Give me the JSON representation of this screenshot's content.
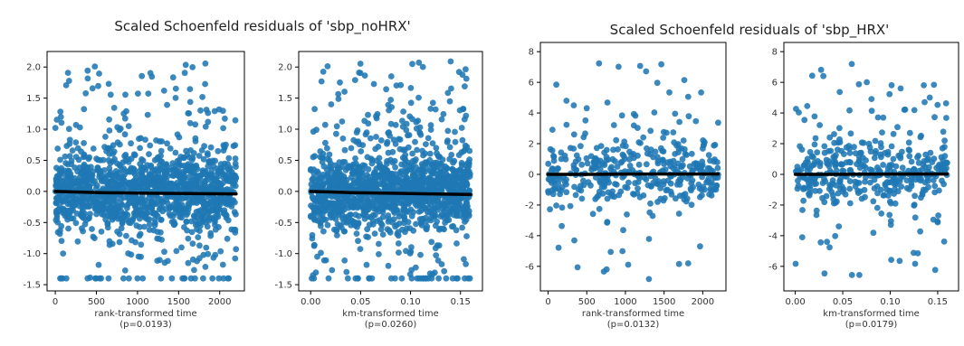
{
  "figure": {
    "title_left": "Scaled Schoenfeld residuals of 'sbp_noHRX'",
    "title_right": "Scaled Schoenfeld residuals of 'sbp_HRX'"
  },
  "colors": {
    "points": "#1f77b4",
    "trend": "#000000",
    "axes": "#000000"
  },
  "chart_data": [
    {
      "type": "scatter",
      "variable": "sbp_noHRX",
      "xlabel": "rank-transformed time",
      "pvalue": "(p=0.0193)",
      "xlim": [
        -100,
        2300
      ],
      "ylim": [
        -1.6,
        2.25
      ],
      "xticks": [
        0,
        500,
        1000,
        1500,
        2000
      ],
      "xtick_labels": [
        "0",
        "500",
        "1000",
        "1500",
        "2000"
      ],
      "yticks": [
        -1.5,
        -1.0,
        -0.5,
        0.0,
        0.5,
        1.0,
        1.5,
        2.0
      ],
      "ytick_labels": [
        "-1.5",
        "-1.0",
        "-0.5",
        "0.0",
        "0.5",
        "1.0",
        "1.5",
        "2.0"
      ],
      "points": {
        "n": 1400,
        "x_range": [
          0,
          2200
        ],
        "dense_spread": 0.55,
        "y_min": -1.4,
        "y_max": 2.2
      },
      "trend": {
        "x": [
          0,
          550,
          1100,
          1650,
          2200
        ],
        "y": [
          0.0,
          -0.02,
          -0.03,
          -0.035,
          -0.04
        ]
      }
    },
    {
      "type": "scatter",
      "variable": "sbp_noHRX",
      "xlabel": "km-transformed time",
      "pvalue": "(p=0.0260)",
      "xlim": [
        -0.012,
        0.172
      ],
      "ylim": [
        -1.6,
        2.25
      ],
      "xticks": [
        0.0,
        0.05,
        0.1,
        0.15
      ],
      "xtick_labels": [
        "0.00",
        "0.05",
        "0.10",
        "0.15"
      ],
      "yticks": [
        -1.5,
        -1.0,
        -0.5,
        0.0,
        0.5,
        1.0,
        1.5,
        2.0
      ],
      "ytick_labels": [
        "-1.5",
        "-1.0",
        "-0.5",
        "0.0",
        "0.5",
        "1.0",
        "1.5",
        "2.0"
      ],
      "points": {
        "n": 1400,
        "x_range": [
          0,
          0.16
        ],
        "dense_spread": 0.55,
        "y_min": -1.4,
        "y_max": 2.2
      },
      "trend": {
        "x": [
          0.0,
          0.04,
          0.08,
          0.12,
          0.16
        ],
        "y": [
          0.0,
          -0.02,
          -0.03,
          -0.04,
          -0.05
        ]
      }
    },
    {
      "type": "scatter",
      "variable": "sbp_HRX",
      "xlabel": "rank-transformed time",
      "pvalue": "(p=0.0132)",
      "xlim": [
        -100,
        2300
      ],
      "ylim": [
        -7.6,
        8.6
      ],
      "xticks": [
        0,
        500,
        1000,
        1500,
        2000
      ],
      "xtick_labels": [
        "0",
        "500",
        "1000",
        "1500",
        "2000"
      ],
      "yticks": [
        -6,
        -4,
        -2,
        0,
        2,
        4,
        6,
        8
      ],
      "ytick_labels": [
        "-6",
        "-4",
        "-2",
        "0",
        "2",
        "4",
        "6",
        "8"
      ],
      "points": {
        "n": 420,
        "x_range": [
          0,
          2200
        ],
        "dense_spread": 1.9,
        "y_min": -7.2,
        "y_max": 7.8
      },
      "trend": {
        "x": [
          0,
          550,
          1100,
          1650,
          2200
        ],
        "y": [
          0.0,
          0.0,
          0.02,
          0.02,
          0.02
        ]
      }
    },
    {
      "type": "scatter",
      "variable": "sbp_HRX",
      "xlabel": "km-transformed time",
      "pvalue": "(p=0.0179)",
      "xlim": [
        -0.012,
        0.172
      ],
      "ylim": [
        -7.6,
        8.6
      ],
      "xticks": [
        0.0,
        0.05,
        0.1,
        0.15
      ],
      "xtick_labels": [
        "0.00",
        "0.05",
        "0.10",
        "0.15"
      ],
      "yticks": [
        -6,
        -4,
        -2,
        0,
        2,
        4,
        6,
        8
      ],
      "ytick_labels": [
        "-6",
        "-4",
        "-2",
        "0",
        "2",
        "4",
        "6",
        "8"
      ],
      "points": {
        "n": 420,
        "x_range": [
          0,
          0.16
        ],
        "dense_spread": 1.9,
        "y_min": -7.2,
        "y_max": 7.8
      },
      "trend": {
        "x": [
          0.0,
          0.04,
          0.08,
          0.12,
          0.16
        ],
        "y": [
          0.0,
          0.0,
          0.01,
          0.02,
          0.02
        ]
      }
    }
  ]
}
